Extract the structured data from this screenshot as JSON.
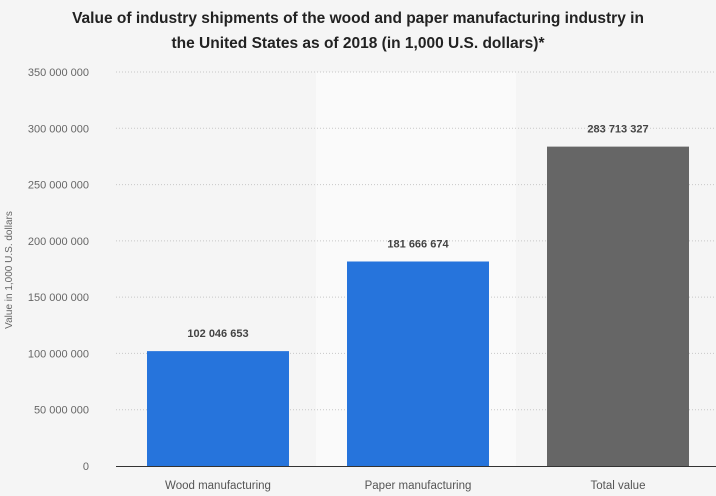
{
  "chart_data": {
    "type": "bar",
    "title": "Value of industry shipments of the wood and paper manufacturing industry in the United States as of 2018 (in 1,000 U.S. dollars)*",
    "title_lines": [
      "Value of industry shipments of the wood and paper manufacturing industry in",
      "the United States as of 2018 (in 1,000 U.S. dollars)*"
    ],
    "xlabel": "",
    "ylabel": "Value in 1,000 U.S. dollars",
    "ylim": [
      0,
      350000000
    ],
    "yticks": [
      0,
      50000000,
      100000000,
      150000000,
      200000000,
      250000000,
      300000000,
      350000000
    ],
    "ytick_labels": [
      "0",
      "50 000 000",
      "100 000 000",
      "150 000 000",
      "200 000 000",
      "250 000 000",
      "300 000 000",
      "350 000 000"
    ],
    "categories": [
      "Wood manufacturing",
      "Paper manufacturing",
      "Total value"
    ],
    "values": [
      102046653,
      181666674,
      283713327
    ],
    "data_labels": [
      "102 046 653",
      "181 666 674",
      "283 713 327"
    ],
    "colors": [
      "#2674dc",
      "#2674dc",
      "#666666"
    ],
    "grid": true,
    "legend": "none"
  }
}
